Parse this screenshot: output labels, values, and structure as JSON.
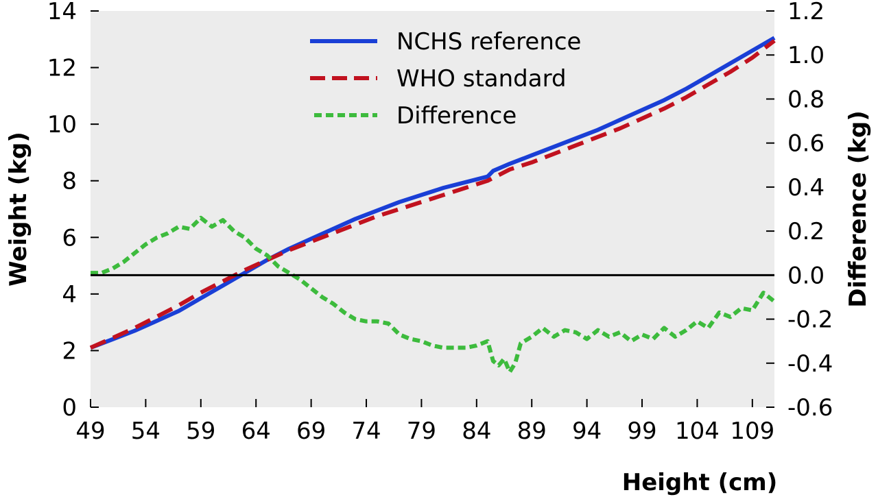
{
  "chart_data": {
    "type": "line",
    "xlabel": "Height (cm)",
    "ylabel_left": "Weight (kg)",
    "ylabel_right": "Difference (kg)",
    "xlim": [
      49,
      111
    ],
    "ylim_left": [
      0,
      14
    ],
    "ylim_right": [
      -0.6,
      1.2
    ],
    "x_ticks": [
      "49",
      "54",
      "59",
      "64",
      "69",
      "74",
      "79",
      "84",
      "89",
      "94",
      "99",
      "104",
      "109"
    ],
    "y_left_ticks": [
      "0",
      "2",
      "4",
      "6",
      "8",
      "10",
      "12",
      "14"
    ],
    "y_right_ticks": [
      "-0.6",
      "-0.4",
      "-0.2",
      "0.0",
      "0.2",
      "0.4",
      "0.6",
      "0.8",
      "1.0",
      "1.2"
    ],
    "grid": false,
    "legend": "top-center",
    "zero_line_right_axis": 0.0,
    "series": [
      {
        "name": "NCHS reference",
        "axis": "left",
        "style": "solid",
        "color": "#1a3fd6",
        "x": [
          49,
          51,
          53,
          55,
          57,
          59,
          61,
          63,
          65,
          67,
          69,
          71,
          73,
          75,
          77,
          79,
          81,
          83,
          85,
          85.5,
          87,
          89,
          91,
          93,
          95,
          97,
          99,
          101,
          103,
          105,
          107,
          109,
          111
        ],
        "y": [
          2.1,
          2.4,
          2.7,
          3.05,
          3.4,
          3.85,
          4.3,
          4.75,
          5.2,
          5.6,
          5.95,
          6.3,
          6.65,
          6.95,
          7.25,
          7.5,
          7.75,
          7.95,
          8.15,
          8.35,
          8.6,
          8.9,
          9.2,
          9.5,
          9.8,
          10.15,
          10.5,
          10.85,
          11.25,
          11.7,
          12.15,
          12.6,
          13.05
        ]
      },
      {
        "name": "WHO standard",
        "axis": "left",
        "style": "dashed",
        "color": "#c1121f",
        "x": [
          49,
          51,
          53,
          55,
          57,
          59,
          61,
          63,
          65,
          67,
          69,
          71,
          73,
          75,
          77,
          79,
          81,
          83,
          85,
          87,
          89,
          91,
          93,
          95,
          97,
          99,
          101,
          103,
          105,
          107,
          109,
          111
        ],
        "y": [
          2.1,
          2.45,
          2.8,
          3.2,
          3.6,
          4.05,
          4.45,
          4.85,
          5.2,
          5.55,
          5.85,
          6.15,
          6.45,
          6.75,
          7.0,
          7.25,
          7.5,
          7.75,
          8.0,
          8.4,
          8.65,
          8.95,
          9.25,
          9.55,
          9.85,
          10.2,
          10.55,
          10.95,
          11.4,
          11.85,
          12.35,
          12.95
        ]
      },
      {
        "name": "Difference",
        "axis": "right",
        "style": "short-dashed",
        "color": "#3dbb3d",
        "x": [
          49,
          50,
          51,
          52,
          53,
          54,
          55,
          56,
          57,
          58,
          59,
          60,
          61,
          62,
          63,
          64,
          65,
          66,
          67,
          68,
          69,
          70,
          71,
          72,
          73,
          74,
          75,
          76,
          77,
          78,
          79,
          80,
          81,
          82,
          83,
          84,
          85,
          85.5,
          86,
          86.5,
          87,
          87.5,
          88,
          89,
          90,
          91,
          92,
          93,
          94,
          95,
          96,
          97,
          98,
          99,
          100,
          101,
          102,
          103,
          104,
          105,
          106,
          107,
          108,
          109,
          110,
          111
        ],
        "y": [
          0.01,
          0.01,
          0.03,
          0.06,
          0.1,
          0.14,
          0.17,
          0.19,
          0.22,
          0.21,
          0.26,
          0.22,
          0.25,
          0.2,
          0.17,
          0.12,
          0.09,
          0.04,
          0.01,
          -0.02,
          -0.06,
          -0.1,
          -0.13,
          -0.17,
          -0.2,
          -0.21,
          -0.21,
          -0.22,
          -0.27,
          -0.29,
          -0.3,
          -0.32,
          -0.33,
          -0.33,
          -0.33,
          -0.32,
          -0.3,
          -0.39,
          -0.41,
          -0.38,
          -0.44,
          -0.4,
          -0.31,
          -0.28,
          -0.24,
          -0.28,
          -0.25,
          -0.26,
          -0.29,
          -0.25,
          -0.28,
          -0.26,
          -0.3,
          -0.27,
          -0.29,
          -0.24,
          -0.28,
          -0.25,
          -0.21,
          -0.24,
          -0.17,
          -0.19,
          -0.15,
          -0.16,
          -0.08,
          -0.12
        ]
      }
    ]
  }
}
